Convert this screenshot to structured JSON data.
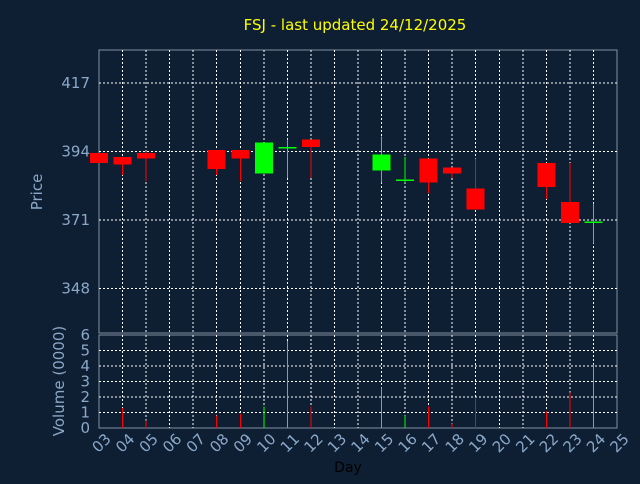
{
  "chart_data": [
    {
      "type": "candlestick",
      "title": "FSJ - last updated 24/12/2025",
      "xlabel": "",
      "ylabel": "Price",
      "ylim": [
        333,
        428
      ],
      "yticks": [
        348,
        371,
        394,
        417
      ],
      "grid": true,
      "colors": {
        "up": "#00ff00",
        "down": "#ff0000"
      },
      "candles": [
        {
          "day": "03",
          "open": 393.5,
          "close": 390.0,
          "high": 393.5,
          "low": 390.0
        },
        {
          "day": "04",
          "open": 392.0,
          "close": 389.5,
          "high": 392.0,
          "low": 386.0
        },
        {
          "day": "05",
          "open": 393.5,
          "close": 391.5,
          "high": 394.0,
          "low": 384.0
        },
        {
          "day": "08",
          "open": 394.5,
          "close": 388.0,
          "high": 394.5,
          "low": 386.0
        },
        {
          "day": "09",
          "open": 394.5,
          "close": 391.5,
          "high": 394.5,
          "low": 384.0
        },
        {
          "day": "10",
          "open": 386.5,
          "close": 397.0,
          "high": 397.0,
          "low": 386.5
        },
        {
          "day": "11",
          "open": 395.0,
          "close": 395.5,
          "high": 398.0,
          "low": 385.0
        },
        {
          "day": "12",
          "open": 398.0,
          "close": 395.5,
          "high": 398.0,
          "low": 385.0
        },
        {
          "day": "15",
          "open": 387.5,
          "close": 393.0,
          "high": 399.0,
          "low": 383.5
        },
        {
          "day": "16",
          "open": 384.0,
          "close": 384.5,
          "high": 392.0,
          "low": 383.5
        },
        {
          "day": "17",
          "open": 391.5,
          "close": 383.5,
          "high": 391.5,
          "low": 380.0
        },
        {
          "day": "18",
          "open": 388.5,
          "close": 386.5,
          "high": 388.5,
          "low": 385.0
        },
        {
          "day": "19",
          "open": 381.5,
          "close": 374.5,
          "high": 391.5,
          "low": 374.5
        },
        {
          "day": "22",
          "open": 390.0,
          "close": 382.0,
          "high": 390.0,
          "low": 378.0
        },
        {
          "day": "23",
          "open": 377.0,
          "close": 370.0,
          "high": 390.0,
          "low": 370.0
        },
        {
          "day": "24",
          "open": 370.0,
          "close": 370.5,
          "high": 376.5,
          "low": 363.0
        }
      ]
    },
    {
      "type": "bar",
      "title": "",
      "xlabel": "Day",
      "ylabel": "Volume (0000)",
      "ylim": [
        0,
        6
      ],
      "yticks": [
        0,
        1,
        2,
        3,
        4,
        5,
        6
      ],
      "categories": [
        "03",
        "04",
        "05",
        "06",
        "07",
        "08",
        "09",
        "10",
        "11",
        "12",
        "13",
        "14",
        "15",
        "16",
        "17",
        "18",
        "19",
        "20",
        "21",
        "22",
        "23",
        "24",
        "25"
      ],
      "values": [
        0,
        1.3,
        0.5,
        0,
        0,
        0.8,
        0.9,
        1.4,
        5.6,
        1.4,
        0,
        0,
        2.6,
        0.8,
        1.4,
        0.3,
        1.9,
        0,
        0,
        1.1,
        2.3,
        4.1,
        0
      ],
      "bar_direction": [
        "down",
        "down",
        "down",
        "",
        "",
        "down",
        "down",
        "up",
        "up",
        "down",
        "",
        "",
        "up",
        "up",
        "down",
        "down",
        "down",
        "",
        "",
        "down",
        "down",
        "up",
        ""
      ],
      "grid": true
    }
  ]
}
